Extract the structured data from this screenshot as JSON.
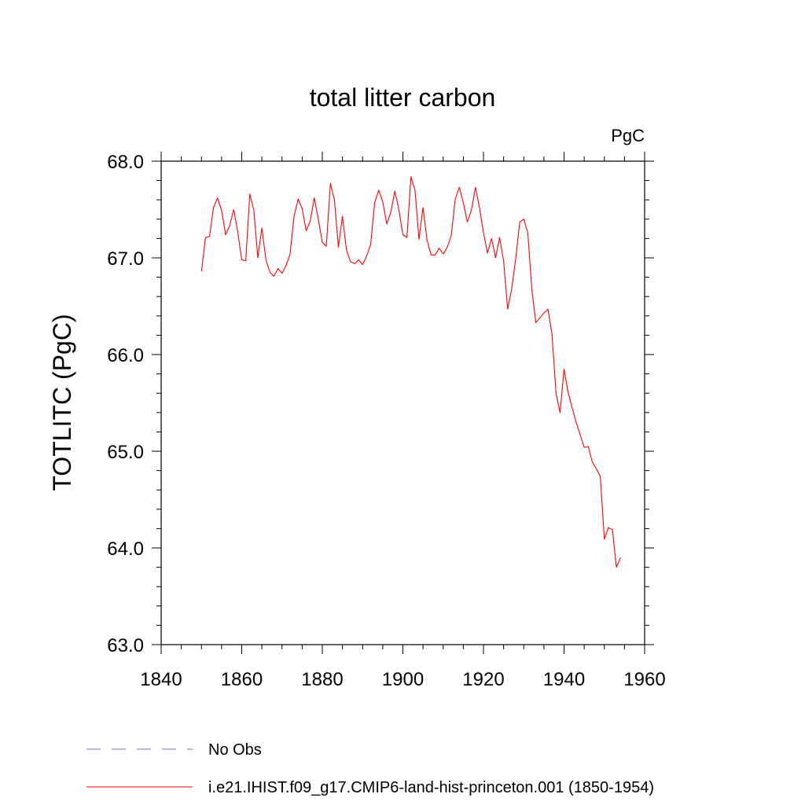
{
  "chart_data": {
    "type": "line",
    "title": "total litter carbon",
    "units_label": "PgC",
    "ylabel": "TOTLITC  (PgC)",
    "xlabel": "",
    "xlim": [
      1840,
      1960
    ],
    "ylim": [
      63.0,
      68.0
    ],
    "x_ticks": [
      1840,
      1860,
      1880,
      1900,
      1920,
      1940,
      1960
    ],
    "y_ticks": [
      "63.0",
      "64.0",
      "65.0",
      "66.0",
      "67.0",
      "68.0"
    ],
    "grid": false,
    "legend_position": "bottom",
    "series": [
      {
        "name": "i.e21.IHIST.f09_g17.CMIP6-land-hist-princeton.001 (1850-1954)",
        "color": "#ff0000",
        "style": "solid",
        "x": [
          1850,
          1851,
          1852,
          1853,
          1854,
          1855,
          1856,
          1857,
          1858,
          1859,
          1860,
          1861,
          1862,
          1863,
          1864,
          1865,
          1866,
          1867,
          1868,
          1869,
          1870,
          1871,
          1872,
          1873,
          1874,
          1875,
          1876,
          1877,
          1878,
          1879,
          1880,
          1881,
          1882,
          1883,
          1884,
          1885,
          1886,
          1887,
          1888,
          1889,
          1890,
          1891,
          1892,
          1893,
          1894,
          1895,
          1896,
          1897,
          1898,
          1899,
          1900,
          1901,
          1902,
          1903,
          1904,
          1905,
          1906,
          1907,
          1908,
          1909,
          1910,
          1911,
          1912,
          1913,
          1914,
          1915,
          1916,
          1917,
          1918,
          1919,
          1920,
          1921,
          1922,
          1923,
          1924,
          1925,
          1926,
          1927,
          1928,
          1929,
          1930,
          1931,
          1932,
          1933,
          1934,
          1935,
          1936,
          1937,
          1938,
          1939,
          1940,
          1941,
          1942,
          1943,
          1944,
          1945,
          1946,
          1947,
          1948,
          1949,
          1950,
          1951,
          1952,
          1953,
          1954
        ],
        "values": [
          66.86,
          67.21,
          67.22,
          67.52,
          67.62,
          67.49,
          67.24,
          67.33,
          67.5,
          67.27,
          66.98,
          66.97,
          67.66,
          67.49,
          67.0,
          67.31,
          66.98,
          66.85,
          66.81,
          66.89,
          66.84,
          66.92,
          67.04,
          67.43,
          67.61,
          67.51,
          67.28,
          67.38,
          67.62,
          67.4,
          67.16,
          67.12,
          67.77,
          67.6,
          67.11,
          67.43,
          67.08,
          66.96,
          66.94,
          66.98,
          66.93,
          67.02,
          67.14,
          67.57,
          67.7,
          67.58,
          67.35,
          67.47,
          67.69,
          67.5,
          67.24,
          67.21,
          67.84,
          67.7,
          67.19,
          67.52,
          67.18,
          67.03,
          67.03,
          67.1,
          67.04,
          67.11,
          67.23,
          67.61,
          67.73,
          67.57,
          67.37,
          67.49,
          67.73,
          67.52,
          67.26,
          67.05,
          67.2,
          67.0,
          67.21,
          66.97,
          66.47,
          66.68,
          66.99,
          67.37,
          67.4,
          67.26,
          66.68,
          66.33,
          66.38,
          66.43,
          66.47,
          66.22,
          65.6,
          65.4,
          65.85,
          65.61,
          65.45,
          65.3,
          65.17,
          65.04,
          65.05,
          64.89,
          64.82,
          64.74,
          64.09,
          64.21,
          64.19,
          63.8,
          63.9
        ]
      },
      {
        "name": "No Obs",
        "color": "#7a6fb8",
        "style": "dashed",
        "x": [],
        "values": []
      }
    ]
  }
}
